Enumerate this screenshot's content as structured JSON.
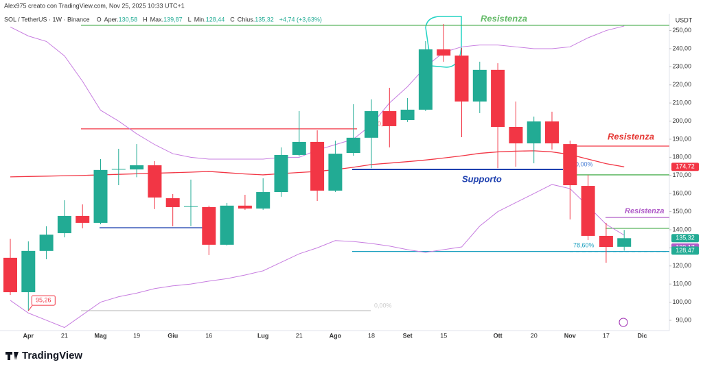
{
  "chart_data": {
    "type": "candlestick",
    "credit": "Alex975 creato con TradingView.com, Nov 25, 2025 10:33 UTC+1",
    "symbol": "SOL / TetherUS · 1W · Binance",
    "ohlc_header": [
      {
        "key": "O",
        "label": "Aper.",
        "value": "130,58"
      },
      {
        "key": "H",
        "label": "Max.",
        "value": "139,87"
      },
      {
        "key": "L",
        "label": "Min.",
        "value": "128,44"
      },
      {
        "key": "C",
        "label": "Chius.",
        "value": "135,32"
      }
    ],
    "change": "+4,74 (+3,63%)",
    "currency": "USDT",
    "brand": "TradingView",
    "categories": [
      null,
      "Apr",
      null,
      "21",
      null,
      "Mag",
      null,
      "19",
      null,
      "Giu",
      null,
      "16",
      null,
      null,
      "Lug",
      null,
      "21",
      null,
      "Ago",
      null,
      "18",
      null,
      "Set",
      null,
      "15",
      null,
      null,
      "Ott",
      null,
      "20",
      null,
      "Nov",
      null,
      "17",
      null,
      "Dic"
    ],
    "open": [
      124.5,
      105.5,
      128.3,
      138.1,
      147.6,
      143.8,
      173.2,
      173.3,
      175.6,
      157.4,
      152.8,
      152.5,
      131.7,
      153.3,
      151.7,
      160.8,
      181.3,
      188.5,
      161.6,
      182.4,
      190.8,
      205.5,
      200.6,
      206.3,
      239.6,
      236.2,
      210.8,
      228.3,
      196.8,
      187.7,
      199.8,
      187.3,
      164.2,
      136.6,
      130.58,
      null
    ],
    "high": [
      135,
      133.6,
      141.9,
      156.3,
      154,
      179,
      184.7,
      187.3,
      177.9,
      159.7,
      167.7,
      153.3,
      154.8,
      159.3,
      168.4,
      185.5,
      205.5,
      194.9,
      189.2,
      209.3,
      212,
      218.4,
      212.7,
      244.2,
      253.6,
      240.4,
      232.8,
      232,
      210.8,
      202.5,
      205.2,
      189.2,
      170.3,
      143.8,
      139.87,
      null
    ],
    "low": [
      104,
      95.26,
      123.7,
      135.8,
      140.8,
      143,
      164.6,
      169,
      151.4,
      141.9,
      141.9,
      126,
      131.3,
      151,
      151,
      158.2,
      180.5,
      155.9,
      160.8,
      180.9,
      174,
      185.5,
      199.5,
      205.5,
      232.8,
      191.1,
      204.4,
      174,
      174.8,
      176.7,
      184.3,
      145.7,
      134.3,
      121.8,
      128.44,
      null
    ],
    "close": [
      105.5,
      128.3,
      137.3,
      147.6,
      143.8,
      173,
      173.6,
      175.6,
      157.8,
      152.5,
      153,
      131.7,
      153.3,
      151.7,
      160.8,
      181.3,
      188.5,
      161.6,
      182,
      190.8,
      205.5,
      197.2,
      206.3,
      239.6,
      236.2,
      210.8,
      228.3,
      196.8,
      187.7,
      199.8,
      187.7,
      164.6,
      136.6,
      130.5,
      135.32,
      null
    ],
    "up_color": "#22ab94",
    "down_color": "#f23645",
    "overlays": [
      {
        "color": "#c77de0",
        "values": [
          252,
          247,
          244,
          236,
          222,
          206,
          200,
          193,
          187,
          182,
          180,
          179,
          179,
          179,
          179,
          180,
          180,
          184,
          187,
          190,
          198,
          210,
          219,
          230,
          238,
          241,
          242,
          242,
          241,
          240,
          240,
          241,
          246,
          250,
          252.5,
          null
        ]
      },
      {
        "color": "#f23645",
        "values": [
          169.2,
          169.4,
          169.6,
          169.8,
          170,
          170.3,
          170.6,
          170.9,
          171.2,
          171.5,
          171.8,
          172.2,
          171.5,
          170.8,
          170.3,
          171,
          171.6,
          172.2,
          173.2,
          174.5,
          176,
          176.8,
          177.6,
          178.5,
          179.6,
          180.8,
          182.2,
          183,
          183.4,
          183.6,
          183,
          181.5,
          179,
          176.5,
          174.72,
          null
        ]
      },
      {
        "color": "#c77de0",
        "values": [
          101,
          94,
          90,
          86,
          93,
          100,
          103,
          105,
          107.5,
          109,
          110,
          111.6,
          113,
          115,
          117.3,
          122,
          126.7,
          130,
          134,
          133.5,
          132.4,
          131,
          129,
          127.5,
          129,
          130.5,
          142,
          150,
          155,
          160,
          165,
          162.7,
          153,
          143,
          137,
          null
        ]
      }
    ],
    "levels": [
      {
        "price": 252.9,
        "color": "#4caf50"
      },
      {
        "price": 195.7,
        "color": "#f23645"
      },
      {
        "price": 186.2,
        "color": "#f23645"
      },
      {
        "price": 173.3,
        "color": "#1e40af"
      },
      {
        "price": 141.1,
        "color": "#1e40af"
      },
      {
        "price": 170.3,
        "color": "#4caf50"
      },
      {
        "price": 146.8,
        "color": "#b05cc8"
      },
      {
        "price": 140.8,
        "color": "#4caf50"
      },
      {
        "price": 128,
        "color": "#1a9fbf"
      },
      {
        "price": 95.3,
        "color": "#cccccc"
      }
    ],
    "annotations": [
      "Resistenza",
      "Resistenza",
      "Resistenza",
      "Supporto",
      "0,00%",
      "0,00%",
      "78,60%",
      "0,00%"
    ],
    "price_tags": [
      {
        "value": 135.32,
        "label": "135,32",
        "color": "#22ab94"
      },
      {
        "value": 130.17,
        "label": "130,17",
        "color": "#b05cc8"
      },
      {
        "value": 128.47,
        "label": "128,47",
        "color": "#22ab94"
      },
      {
        "value": 174.72,
        "label": "174,72",
        "color": "#f23645"
      }
    ],
    "low_marker": {
      "value": 95.26,
      "label": "95,26"
    },
    "ylim": [
      84.3,
      259.3
    ],
    "yticks": [
      {
        "value": 90,
        "label": "90,00"
      },
      {
        "value": 100,
        "label": "100,00"
      },
      {
        "value": 110,
        "label": "110,00"
      },
      {
        "value": 120,
        "label": "120,00"
      },
      {
        "value": 130,
        "label": "130,00"
      },
      {
        "value": 140,
        "label": "140,00"
      },
      {
        "value": 150,
        "label": "150,00"
      },
      {
        "value": 160,
        "label": "160,00"
      },
      {
        "value": 170,
        "label": "170,00"
      },
      {
        "value": 180,
        "label": "180,00"
      },
      {
        "value": 190,
        "label": "190,00"
      },
      {
        "value": 200,
        "label": "200,00"
      },
      {
        "value": 210,
        "label": "210,00"
      },
      {
        "value": 220,
        "label": "220,00"
      },
      {
        "value": 230,
        "label": "230,00"
      },
      {
        "value": 240,
        "label": "240,00"
      },
      {
        "value": 250,
        "label": "250,00"
      }
    ],
    "grid": false
  }
}
